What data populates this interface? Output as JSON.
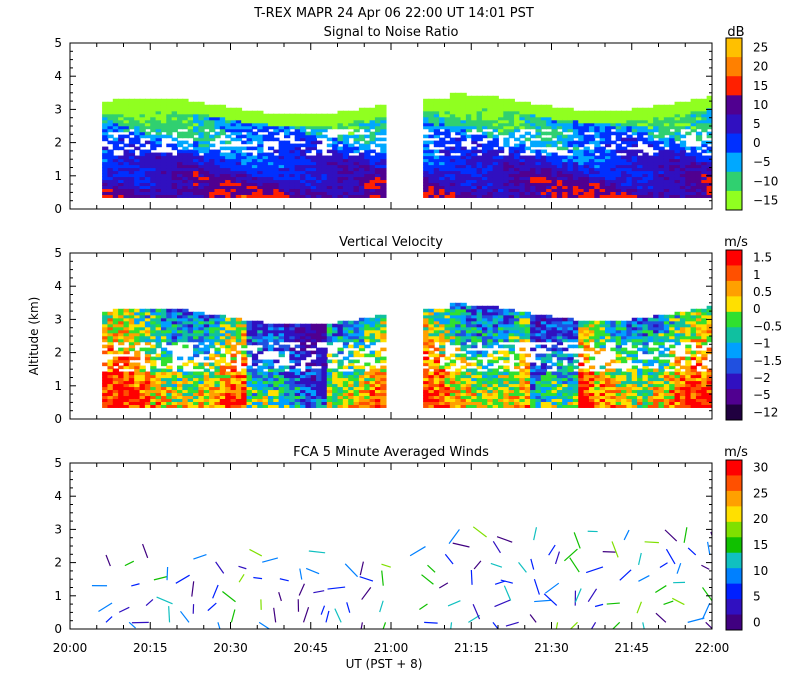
{
  "header": {
    "title": "T-REX  MAPR 24 Apr 06  22:00 UT  14:01  PST"
  },
  "x_axis": {
    "ticks": [
      "20:00",
      "20:15",
      "20:30",
      "20:45",
      "21:00",
      "21:15",
      "21:30",
      "21:45",
      "22:00"
    ],
    "label": "UT  (PST + 8)"
  },
  "chart_data": [
    {
      "type": "heatmap",
      "title": "Signal to Noise Ratio",
      "ylabel": "",
      "ylim": [
        0,
        5
      ],
      "yticks": [
        "0",
        "1",
        "2",
        "3",
        "4",
        "5"
      ],
      "xlim": [
        "20:00",
        "22:00"
      ],
      "data_extent_km": [
        0.35,
        3.3
      ],
      "gap": [
        "20:59",
        "21:06"
      ],
      "colorbar": {
        "unit": "dB",
        "labels": [
          "25",
          "20",
          "15",
          "10",
          "5",
          "0",
          "−5",
          "−10",
          "−15"
        ],
        "colors": [
          "#ffc000",
          "#ff8000",
          "#ff2000",
          "#500090",
          "#3010c0",
          "#0030ff",
          "#00a8ff",
          "#30d070",
          "#90ff20"
        ]
      }
    },
    {
      "type": "heatmap",
      "title": "Vertical Velocity",
      "ylabel": "Altitude (km)",
      "ylim": [
        0,
        5
      ],
      "yticks": [
        "0",
        "1",
        "2",
        "3",
        "4",
        "5"
      ],
      "xlim": [
        "20:00",
        "22:00"
      ],
      "data_extent_km": [
        0.35,
        3.3
      ],
      "gap": [
        "20:59",
        "21:06"
      ],
      "colorbar": {
        "unit": "m/s",
        "labels": [
          "1.5",
          "1",
          "0.5",
          "0",
          "−0.5",
          "−1",
          "−1.5",
          "−2",
          "−5",
          "−12"
        ],
        "colors": [
          "#ff0000",
          "#ff5000",
          "#ffa000",
          "#ffe000",
          "#30e030",
          "#10c0a0",
          "#00a0ff",
          "#2050e0",
          "#3010c0",
          "#500090",
          "#200040"
        ]
      }
    },
    {
      "type": "scatter",
      "title": "FCA 5 Minute Averaged Winds",
      "ylabel": "",
      "ylim": [
        0,
        5
      ],
      "yticks": [
        "0",
        "1",
        "2",
        "3",
        "4",
        "5"
      ],
      "xlim": [
        "20:00",
        "22:00"
      ],
      "colorbar": {
        "unit": "m/s",
        "labels": [
          "30",
          "25",
          "20",
          "15",
          "10",
          "5",
          "0"
        ],
        "colors": [
          "#ff0000",
          "#ff5000",
          "#ffa000",
          "#ffe000",
          "#80e000",
          "#10c000",
          "#10c0c0",
          "#0080ff",
          "#0020ff",
          "#3010c0",
          "#400080"
        ]
      },
      "wind_times_min": [
        7,
        11,
        15,
        19,
        23,
        27,
        31,
        35,
        39,
        43,
        47,
        51,
        55,
        59,
        67,
        71,
        75,
        79,
        83,
        87,
        91,
        95,
        99,
        103,
        107,
        111,
        115,
        119
      ]
    }
  ]
}
